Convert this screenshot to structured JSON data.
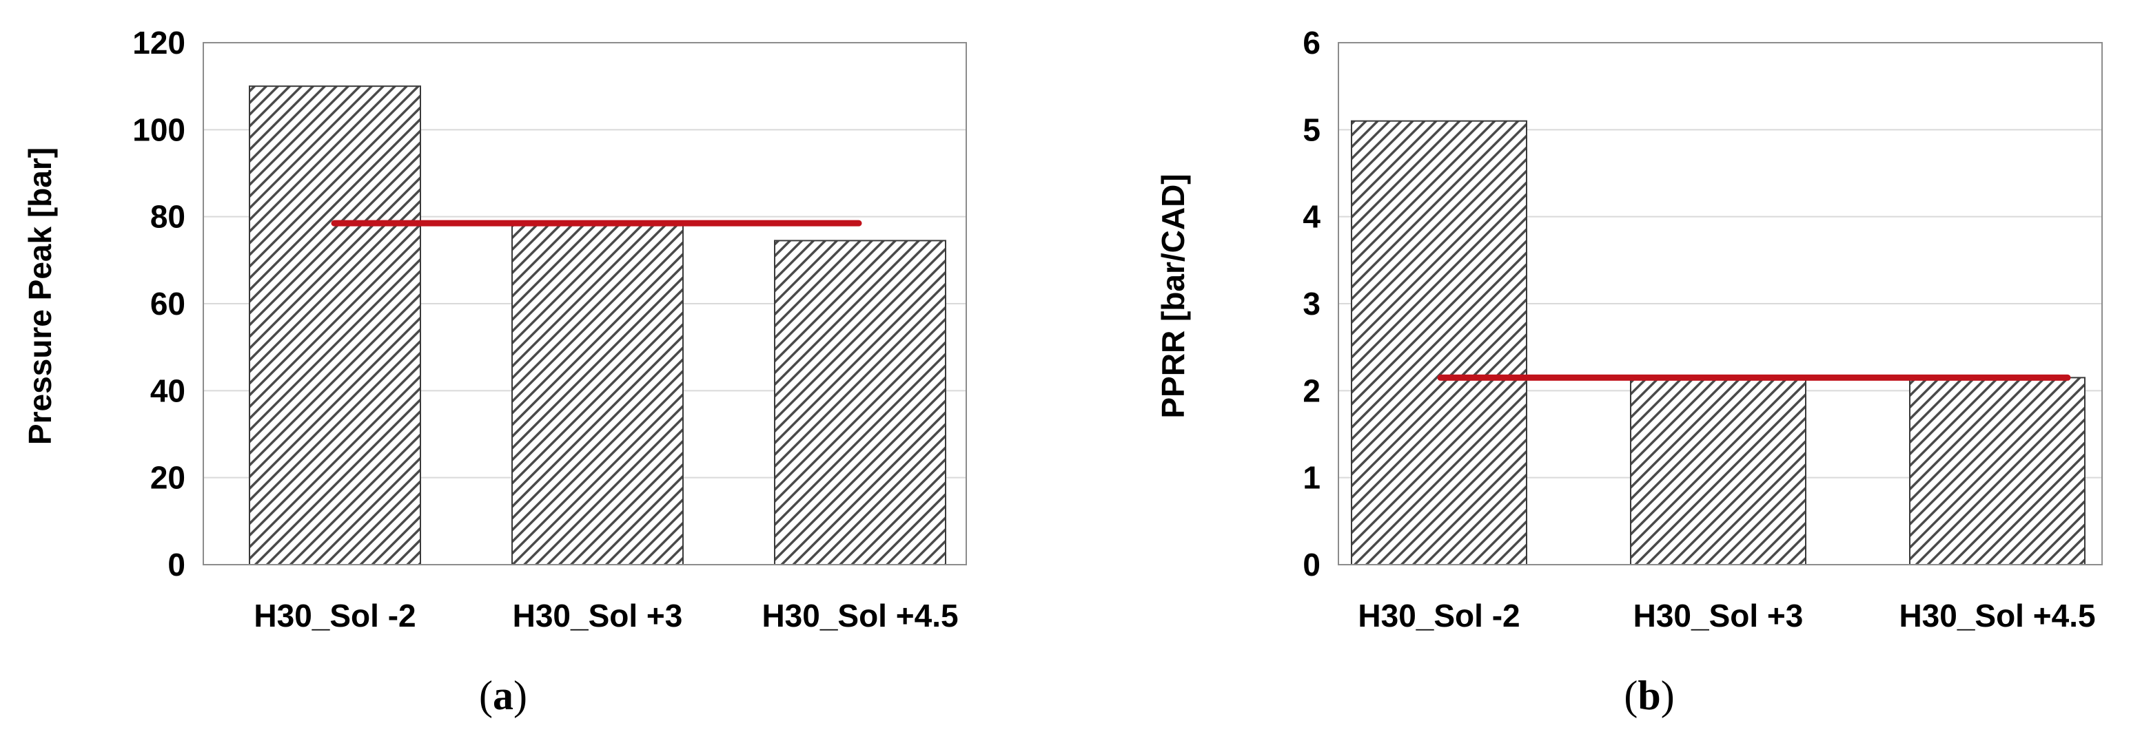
{
  "chart_data": [
    {
      "type": "bar",
      "panel_label": "a",
      "categories": [
        "H30_Sol -2",
        "H30_Sol +3",
        "H30_Sol +4.5"
      ],
      "values": [
        110,
        78,
        74.5
      ],
      "reference_line": 78.5,
      "ylabel": "Pressure Peak [bar]",
      "xlabel": "",
      "ylim": [
        0,
        120
      ],
      "yticks": [
        "0",
        "20",
        "40",
        "60",
        "80",
        "100",
        "120"
      ],
      "grid": true,
      "bar_fill": "diagonal hatch",
      "reference_line_color": "#c0121b"
    },
    {
      "type": "bar",
      "panel_label": "b",
      "categories": [
        "H30_Sol -2",
        "H30_Sol +3",
        "H30_Sol +4.5"
      ],
      "values": [
        5.1,
        2.15,
        2.15
      ],
      "reference_line": 2.15,
      "ylabel": "PPRR [bar/CAD]",
      "xlabel": "",
      "ylim": [
        0,
        6
      ],
      "yticks": [
        "0",
        "1",
        "2",
        "3",
        "4",
        "5",
        "6"
      ],
      "grid": true,
      "bar_fill": "diagonal hatch",
      "reference_line_color": "#c0121b"
    }
  ]
}
